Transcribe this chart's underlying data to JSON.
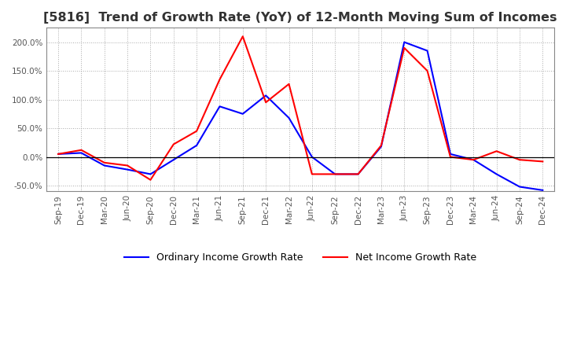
{
  "title": "[5816]  Trend of Growth Rate (YoY) of 12-Month Moving Sum of Incomes",
  "title_fontsize": 11.5,
  "background_color": "#ffffff",
  "grid_color": "#aaaaaa",
  "legend_labels": [
    "Ordinary Income Growth Rate",
    "Net Income Growth Rate"
  ],
  "line_colors": [
    "#0000ff",
    "#ff0000"
  ],
  "x_labels": [
    "Sep-19",
    "Dec-19",
    "Mar-20",
    "Jun-20",
    "Sep-20",
    "Dec-20",
    "Mar-21",
    "Jun-21",
    "Sep-21",
    "Dec-21",
    "Mar-22",
    "Jun-22",
    "Sep-22",
    "Dec-22",
    "Mar-23",
    "Jun-23",
    "Sep-23",
    "Dec-23",
    "Mar-24",
    "Jun-24",
    "Sep-24",
    "Dec-24"
  ],
  "ordinary_income_growth": [
    0.05,
    0.07,
    -0.15,
    -0.22,
    -0.3,
    -0.05,
    0.2,
    0.88,
    0.75,
    1.07,
    0.68,
    0.0,
    -0.3,
    -0.3,
    0.18,
    2.0,
    1.85,
    0.05,
    -0.05,
    -0.3,
    -0.52,
    -0.58
  ],
  "net_income_growth": [
    0.05,
    0.12,
    -0.1,
    -0.15,
    -0.4,
    0.22,
    0.45,
    1.35,
    2.1,
    0.95,
    1.27,
    -0.3,
    -0.3,
    -0.3,
    0.2,
    1.9,
    1.5,
    0.0,
    -0.05,
    0.1,
    -0.05,
    -0.08
  ],
  "ylim_min": -0.6,
  "ylim_max": 2.25,
  "yticks": [
    -0.5,
    0.0,
    0.5,
    1.0,
    1.5,
    2.0
  ]
}
